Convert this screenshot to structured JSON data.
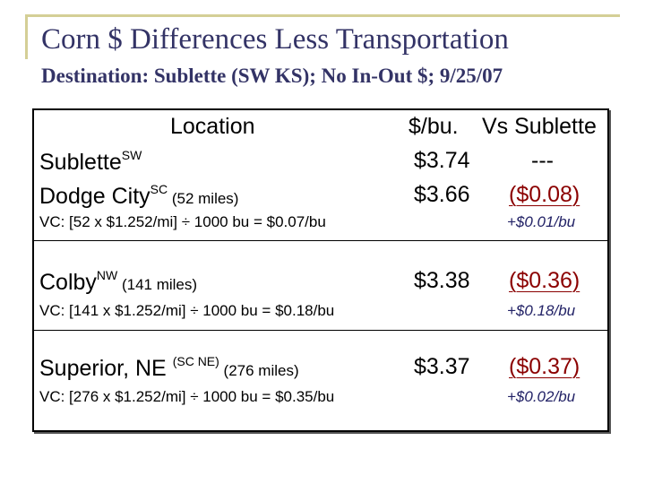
{
  "slide": {
    "title": "Corn $ Differences Less Transportation",
    "subtitle": "Destination: Sublette (SW KS); No In-Out $; 9/25/07"
  },
  "table": {
    "headers": {
      "location": "Location",
      "price": "$/bu.",
      "vs": "Vs Sublette"
    },
    "rows": [
      {
        "name": "Sublette",
        "sup": "SW",
        "distance": "",
        "price": "$3.74",
        "diff": "---"
      },
      {
        "name": "Dodge City",
        "sup": "SC",
        "distance": " (52 miles)",
        "price": "$3.66",
        "diff": "($0.08)",
        "vc": "VC: [52 x $1.252/mi] ÷ 1000 bu = $0.07/bu",
        "adj": "+$0.01/bu"
      },
      {
        "name": "Colby",
        "sup": "NW",
        "distance": " (141 miles)",
        "price": "$3.38",
        "diff": "($0.36)",
        "vc": "VC: [141 x $1.252/mi] ÷ 1000 bu = $0.18/bu",
        "adj": "+$0.18/bu"
      },
      {
        "name": "Superior, NE ",
        "sup": "(SC NE)",
        "distance": " (276 miles)",
        "price": "$3.37",
        "diff": "($0.37)",
        "vc": "VC: [276 x $1.252/mi] ÷ 1000 bu = $0.35/bu",
        "adj": "+$0.02/bu"
      }
    ]
  },
  "colors": {
    "title": "#333366",
    "frame": "#d4cf96",
    "difference": "#8b0000",
    "adjustment": "#222266"
  }
}
